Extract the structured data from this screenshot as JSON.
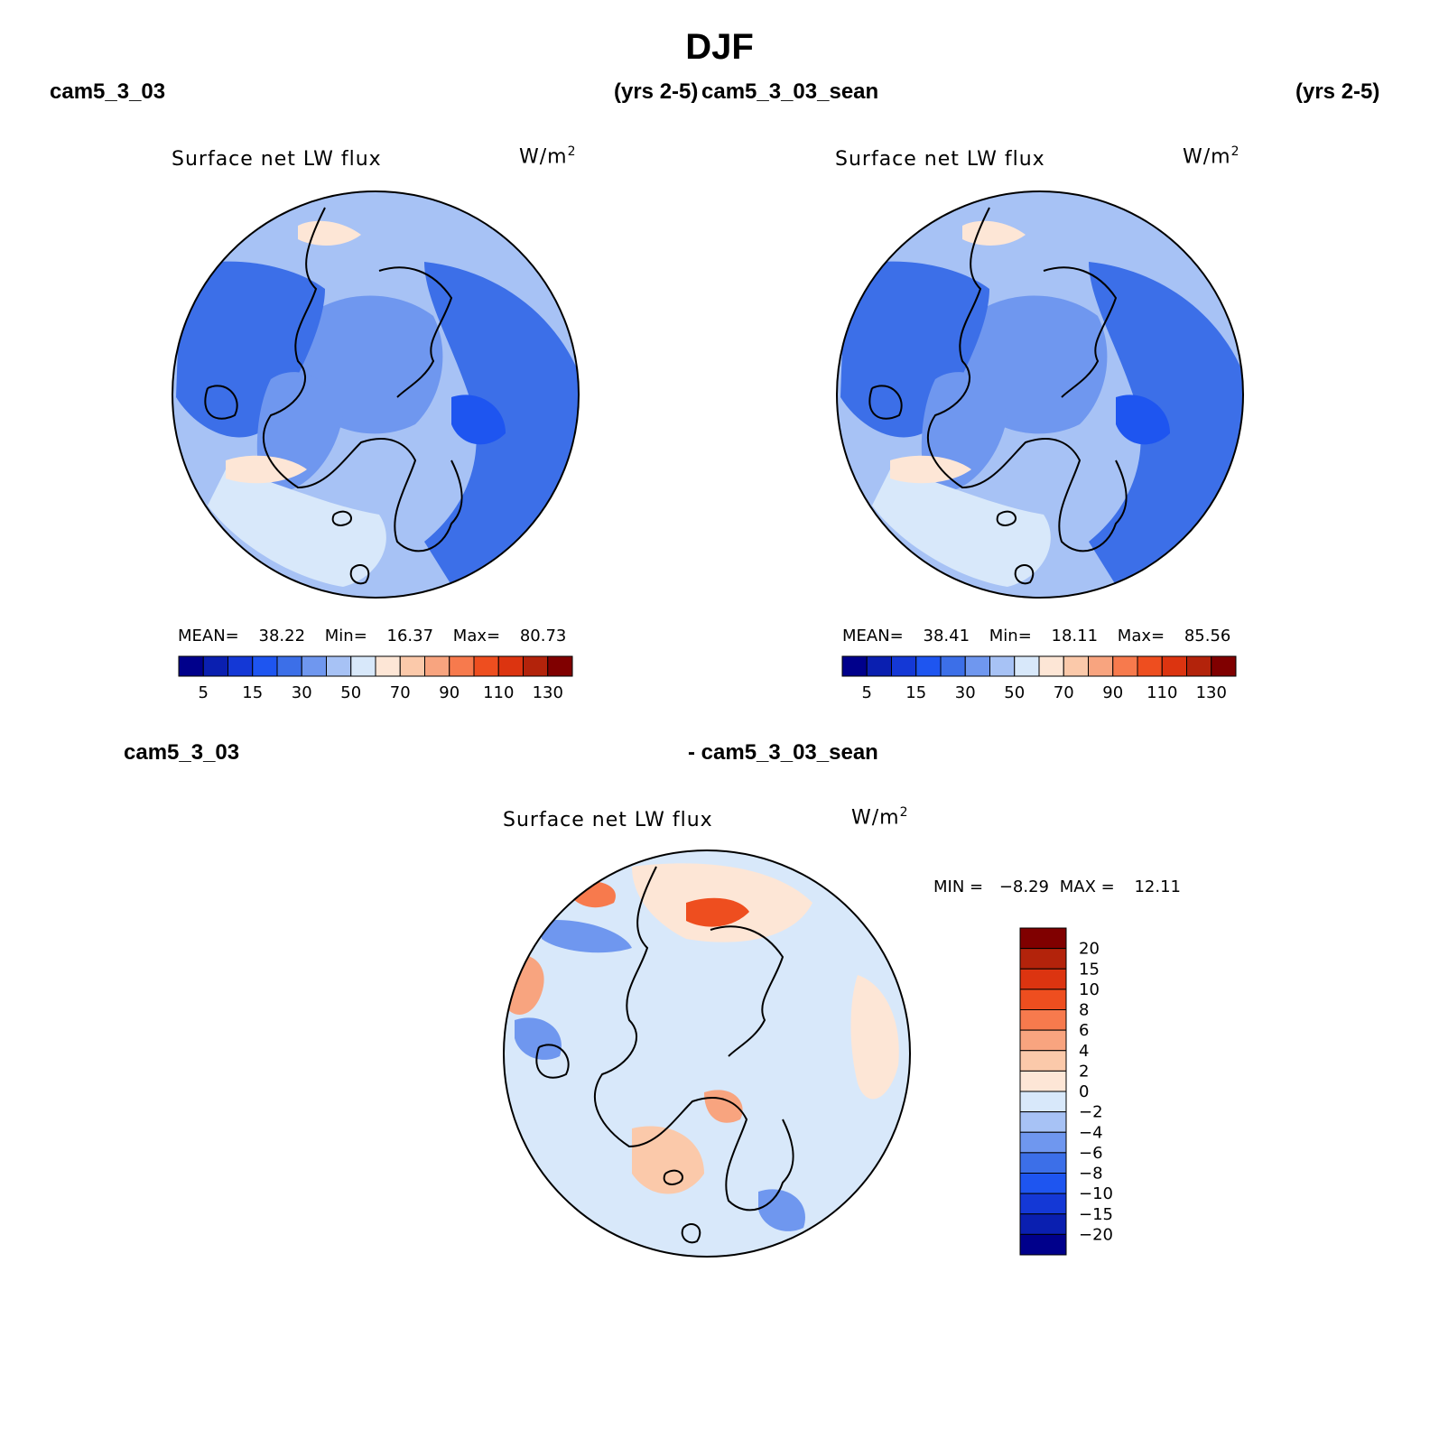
{
  "figure": {
    "season": "DJF",
    "top_left_case": "cam5_3_03",
    "top_left_years": "(yrs 2-5)",
    "top_right_case": "cam5_3_03_sean",
    "top_right_years": "(yrs 2-5)",
    "bottom_left_case": "cam5_3_03",
    "bottom_right_case": "- cam5_3_03_sean"
  },
  "colors": {
    "scale": [
      "#00008b",
      "#0a1fb0",
      "#1438d6",
      "#1e55f0",
      "#3c6fe8",
      "#6f97ef",
      "#a7c2f5",
      "#d8e8fa",
      "#fde6d6",
      "#fbc9aa",
      "#f8a47f",
      "#f77a4d",
      "#ee4e1f",
      "#dc3410",
      "#b3230b",
      "#800000"
    ],
    "land_outline": "#000000"
  },
  "chart_data": [
    {
      "type": "heatmap",
      "projection": "north polar stereographic",
      "title": "Surface net LW flux",
      "units_text": "W/m",
      "units_exp": "2",
      "stats": {
        "mean_label": "MEAN=",
        "mean": "38.22",
        "min_label": "Min=",
        "min": "16.37",
        "max_label": "Max=",
        "max": "80.73"
      },
      "colorbar_levels": [
        5,
        10,
        15,
        20,
        30,
        40,
        50,
        60,
        70,
        80,
        90,
        100,
        110,
        120,
        130
      ],
      "colorbar_tick_labels": [
        "5",
        "15",
        "30",
        "50",
        "70",
        "90",
        "110",
        "130"
      ]
    },
    {
      "type": "heatmap",
      "projection": "north polar stereographic",
      "title": "Surface net LW flux",
      "units_text": "W/m",
      "units_exp": "2",
      "stats": {
        "mean_label": "MEAN=",
        "mean": "38.41",
        "min_label": "Min=",
        "min": "18.11",
        "max_label": "Max=",
        "max": "85.56"
      },
      "colorbar_levels": [
        5,
        10,
        15,
        20,
        30,
        40,
        50,
        60,
        70,
        80,
        90,
        100,
        110,
        120,
        130
      ],
      "colorbar_tick_labels": [
        "5",
        "15",
        "30",
        "50",
        "70",
        "90",
        "110",
        "130"
      ]
    },
    {
      "type": "heatmap",
      "projection": "north polar stereographic",
      "title": "Surface net LW flux",
      "units_text": "W/m",
      "units_exp": "2",
      "stats": {
        "min_label": "MIN =",
        "min": "−8.29",
        "max_label": "MAX =",
        "max": "12.11"
      },
      "colorbar_levels": [
        -20,
        -15,
        -10,
        -8,
        -6,
        -4,
        -2,
        0,
        2,
        4,
        6,
        8,
        10,
        15,
        20
      ],
      "colorbar_tick_labels": [
        "20",
        "15",
        "10",
        "8",
        "6",
        "4",
        "2",
        "0",
        "−2",
        "−4",
        "−6",
        "−8",
        "−10",
        "−15",
        "−20"
      ]
    }
  ]
}
